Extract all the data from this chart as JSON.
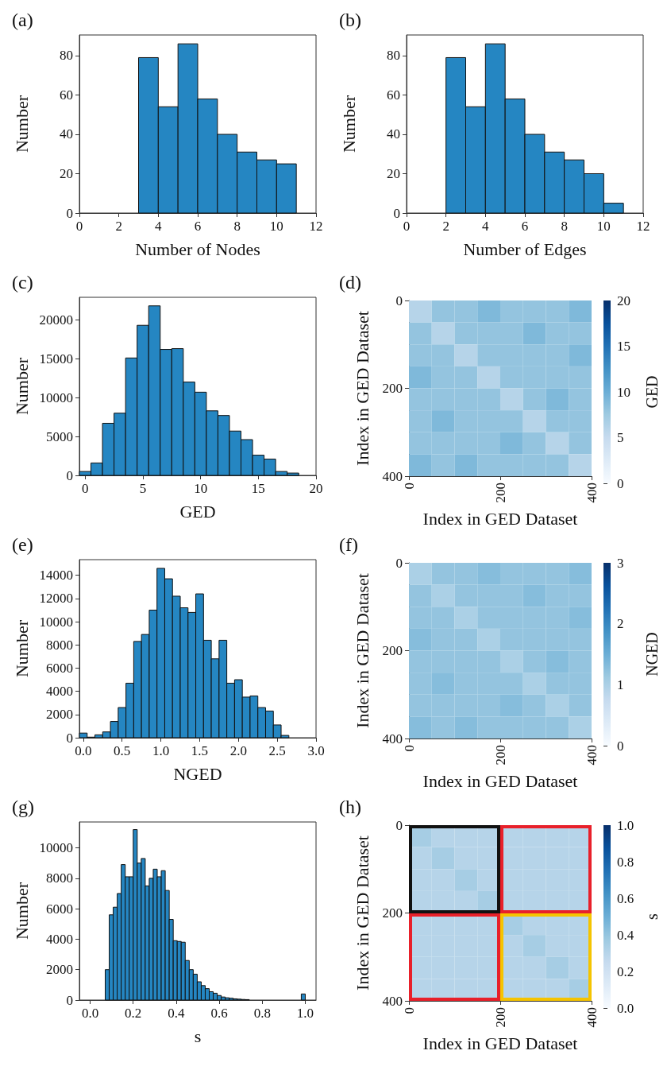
{
  "chart_data": [
    {
      "type": "histogram",
      "title": "(a)",
      "xlabel": "Number of Nodes",
      "ylabel": "Number",
      "color": "#2586c2",
      "bins": [
        0,
        1,
        2,
        3,
        4,
        5,
        6,
        7,
        8,
        9,
        10,
        11
      ],
      "values": [
        0,
        0,
        0,
        79,
        54,
        86,
        58,
        40,
        31,
        27,
        25
      ],
      "xlim": [
        0,
        12
      ],
      "xticks": [
        0,
        2,
        4,
        6,
        8,
        10,
        12
      ],
      "ylim": [
        0,
        90.5
      ],
      "yticks": [
        0,
        20,
        40,
        60,
        80
      ],
      "grid": false
    },
    {
      "type": "histogram",
      "title": "(b)",
      "xlabel": "Number of Edges",
      "ylabel": "Number",
      "color": "#2586c2",
      "bins": [
        0,
        1,
        2,
        3,
        4,
        5,
        6,
        7,
        8,
        9,
        10,
        11
      ],
      "values": [
        0,
        0,
        79,
        54,
        86,
        58,
        40,
        31,
        27,
        20,
        5
      ],
      "xlim": [
        0,
        12
      ],
      "xticks": [
        0,
        2,
        4,
        6,
        8,
        10,
        12
      ],
      "ylim": [
        0,
        90.5
      ],
      "yticks": [
        0,
        20,
        40,
        60,
        80
      ],
      "grid": false
    },
    {
      "type": "histogram",
      "title": "(c)",
      "xlabel": "GED",
      "ylabel": "Number",
      "color": "#2586c2",
      "bins": [
        -0.5,
        0.5,
        1.5,
        2.5,
        3.5,
        4.5,
        5.5,
        6.5,
        7.5,
        8.5,
        9.5,
        10.5,
        11.5,
        12.5,
        13.5,
        14.5,
        15.5,
        16.5,
        17.5,
        18.5,
        19.5
      ],
      "values": [
        500,
        1600,
        6700,
        8000,
        15100,
        19300,
        21800,
        16200,
        16300,
        12000,
        10700,
        8300,
        7700,
        5700,
        4600,
        2600,
        2100,
        500,
        300,
        0
      ],
      "xlim": [
        -0.5,
        20
      ],
      "xticks": [
        0,
        5,
        10,
        15,
        20
      ],
      "ylim": [
        0,
        22900
      ],
      "yticks": [
        0,
        5000,
        10000,
        15000,
        20000
      ],
      "grid": false
    },
    {
      "type": "heatmap",
      "title": "(d)",
      "xlabel": "Index in GED Dataset",
      "ylabel": "Index in GED Dataset",
      "clabel": "GED",
      "xlim": [
        0,
        400
      ],
      "xticks": [
        0,
        200,
        400
      ],
      "ylim": [
        400,
        0
      ],
      "yticks": [
        0,
        200,
        400
      ],
      "clim": [
        0,
        20
      ],
      "cticks": [
        0,
        5,
        10,
        15,
        20
      ],
      "cells": [
        [
          6,
          8,
          8,
          9,
          8,
          8,
          8,
          9
        ],
        [
          8,
          6,
          8,
          8,
          8,
          9,
          8,
          8
        ],
        [
          8,
          8,
          6,
          8,
          8,
          8,
          8,
          9
        ],
        [
          9,
          8,
          8,
          6,
          8,
          8,
          8,
          8
        ],
        [
          8,
          8,
          8,
          8,
          6,
          8,
          9,
          8
        ],
        [
          8,
          9,
          8,
          8,
          8,
          6,
          8,
          8
        ],
        [
          8,
          8,
          8,
          8,
          9,
          8,
          6,
          8
        ],
        [
          9,
          8,
          9,
          8,
          8,
          8,
          8,
          6
        ]
      ]
    },
    {
      "type": "histogram",
      "title": "(e)",
      "xlabel": "NGED",
      "ylabel": "Number",
      "color": "#2586c2",
      "bins": [
        -0.05,
        0.05,
        0.15,
        0.25,
        0.35,
        0.45,
        0.55,
        0.65,
        0.75,
        0.85,
        0.95,
        1.05,
        1.15,
        1.25,
        1.35,
        1.45,
        1.55,
        1.65,
        1.75,
        1.85,
        1.95,
        2.05,
        2.15,
        2.25,
        2.35,
        2.45,
        2.55,
        2.65,
        2.75,
        2.85,
        2.95
      ],
      "values": [
        400,
        50,
        250,
        500,
        1400,
        2600,
        4700,
        8300,
        8900,
        11000,
        14600,
        13700,
        12200,
        11200,
        10800,
        12400,
        8400,
        6800,
        8400,
        4700,
        5000,
        3500,
        3600,
        2600,
        2300,
        1100,
        200,
        0,
        0,
        0
      ],
      "xlim": [
        -0.05,
        3.0
      ],
      "xticks": [
        {
          "value": 0,
          "label": "0.0"
        },
        0.5,
        {
          "value": 1,
          "label": "1.0"
        },
        1.5,
        {
          "value": 2,
          "label": "2.0"
        },
        2.5,
        {
          "value": 3,
          "label": "3.0"
        }
      ],
      "ylim": [
        0,
        15350
      ],
      "yticks": [
        0,
        2000,
        4000,
        6000,
        8000,
        10000,
        12000,
        14000
      ],
      "grid": false
    },
    {
      "type": "heatmap",
      "title": "(f)",
      "xlabel": "Index in GED Dataset",
      "ylabel": "Index in GED Dataset",
      "clabel": "NGED",
      "xlim": [
        0,
        400
      ],
      "xticks": [
        0,
        200,
        400
      ],
      "ylim": [
        400,
        0
      ],
      "yticks": [
        0,
        200,
        400
      ],
      "clim": [
        0,
        3
      ],
      "cticks": [
        0,
        1,
        2,
        3
      ],
      "cells": [
        [
          1.0,
          1.2,
          1.2,
          1.3,
          1.2,
          1.2,
          1.2,
          1.3
        ],
        [
          1.2,
          1.0,
          1.2,
          1.2,
          1.2,
          1.3,
          1.2,
          1.2
        ],
        [
          1.2,
          1.2,
          1.0,
          1.2,
          1.2,
          1.2,
          1.2,
          1.3
        ],
        [
          1.3,
          1.2,
          1.2,
          1.0,
          1.2,
          1.2,
          1.2,
          1.2
        ],
        [
          1.2,
          1.2,
          1.2,
          1.2,
          1.0,
          1.2,
          1.3,
          1.2
        ],
        [
          1.2,
          1.3,
          1.2,
          1.2,
          1.2,
          1.0,
          1.2,
          1.2
        ],
        [
          1.2,
          1.2,
          1.2,
          1.2,
          1.3,
          1.2,
          1.0,
          1.2
        ],
        [
          1.3,
          1.2,
          1.3,
          1.2,
          1.2,
          1.2,
          1.2,
          1.0
        ]
      ]
    },
    {
      "type": "histogram",
      "title": "(g)",
      "xlabel": "s",
      "ylabel": "Number",
      "color": "#2586c2",
      "bins": [
        0.07,
        0.0886,
        0.1072,
        0.1258,
        0.1444,
        0.163,
        0.1816,
        0.2002,
        0.2188,
        0.2374,
        0.256,
        0.2746,
        0.2932,
        0.3118,
        0.3304,
        0.349,
        0.3676,
        0.3862,
        0.4048,
        0.4234,
        0.442,
        0.4606,
        0.4792,
        0.4978,
        0.5164,
        0.535,
        0.5536,
        0.5722,
        0.5908,
        0.6094,
        0.628,
        0.6466,
        0.6652,
        0.6838,
        0.7024,
        0.721,
        0.7396,
        0.7582,
        0.7768,
        0.7954,
        0.814,
        0.8326,
        0.8512,
        0.8698,
        0.8884,
        0.907,
        0.9256,
        0.9442,
        0.9628,
        0.9814,
        1.0
      ],
      "values": [
        2000,
        5600,
        6100,
        7000,
        8900,
        8100,
        8100,
        11200,
        9000,
        9300,
        7500,
        8000,
        8600,
        8100,
        8500,
        7200,
        5300,
        3900,
        3850,
        3800,
        2600,
        2000,
        1700,
        1200,
        950,
        750,
        550,
        450,
        300,
        200,
        150,
        120,
        80,
        60,
        40,
        30,
        null,
        null,
        0,
        0,
        0,
        0,
        0,
        0,
        0,
        0,
        0,
        0,
        0,
        400
      ],
      "xlim": [
        -0.05,
        1.05
      ],
      "xticks": [
        {
          "value": 0,
          "label": "0.0"
        },
        0.2,
        0.4,
        0.6,
        0.8,
        {
          "value": 1,
          "label": "1.0"
        }
      ],
      "ylim": [
        0,
        11700
      ],
      "yticks": [
        0,
        2000,
        4000,
        6000,
        8000,
        10000
      ],
      "grid": false
    },
    {
      "type": "heatmap",
      "title": "(h)",
      "xlabel": "Index in GED Dataset",
      "ylabel": "Index in GED Dataset",
      "clabel": "s",
      "xlim": [
        0,
        400
      ],
      "xticks": [
        0,
        200,
        400
      ],
      "ylim": [
        400,
        0
      ],
      "yticks": [
        0,
        200,
        400
      ],
      "clim": [
        0,
        1.0
      ],
      "cticks": [
        {
          "value": 0,
          "label": "0.0"
        },
        0.2,
        0.4,
        0.6,
        0.8,
        {
          "value": 1,
          "label": "1.0"
        }
      ],
      "cells": [
        [
          0.35,
          0.3,
          0.3,
          0.3,
          0.3,
          0.3,
          0.3,
          0.3
        ],
        [
          0.3,
          0.35,
          0.3,
          0.3,
          0.3,
          0.3,
          0.3,
          0.3
        ],
        [
          0.3,
          0.3,
          0.35,
          0.3,
          0.3,
          0.3,
          0.3,
          0.3
        ],
        [
          0.3,
          0.3,
          0.3,
          0.35,
          0.3,
          0.3,
          0.3,
          0.3
        ],
        [
          0.3,
          0.3,
          0.3,
          0.3,
          0.35,
          0.3,
          0.3,
          0.3
        ],
        [
          0.3,
          0.3,
          0.3,
          0.3,
          0.3,
          0.35,
          0.3,
          0.3
        ],
        [
          0.3,
          0.3,
          0.3,
          0.3,
          0.3,
          0.3,
          0.35,
          0.3
        ],
        [
          0.3,
          0.3,
          0.3,
          0.3,
          0.3,
          0.3,
          0.3,
          0.35
        ]
      ]
    }
  ]
}
